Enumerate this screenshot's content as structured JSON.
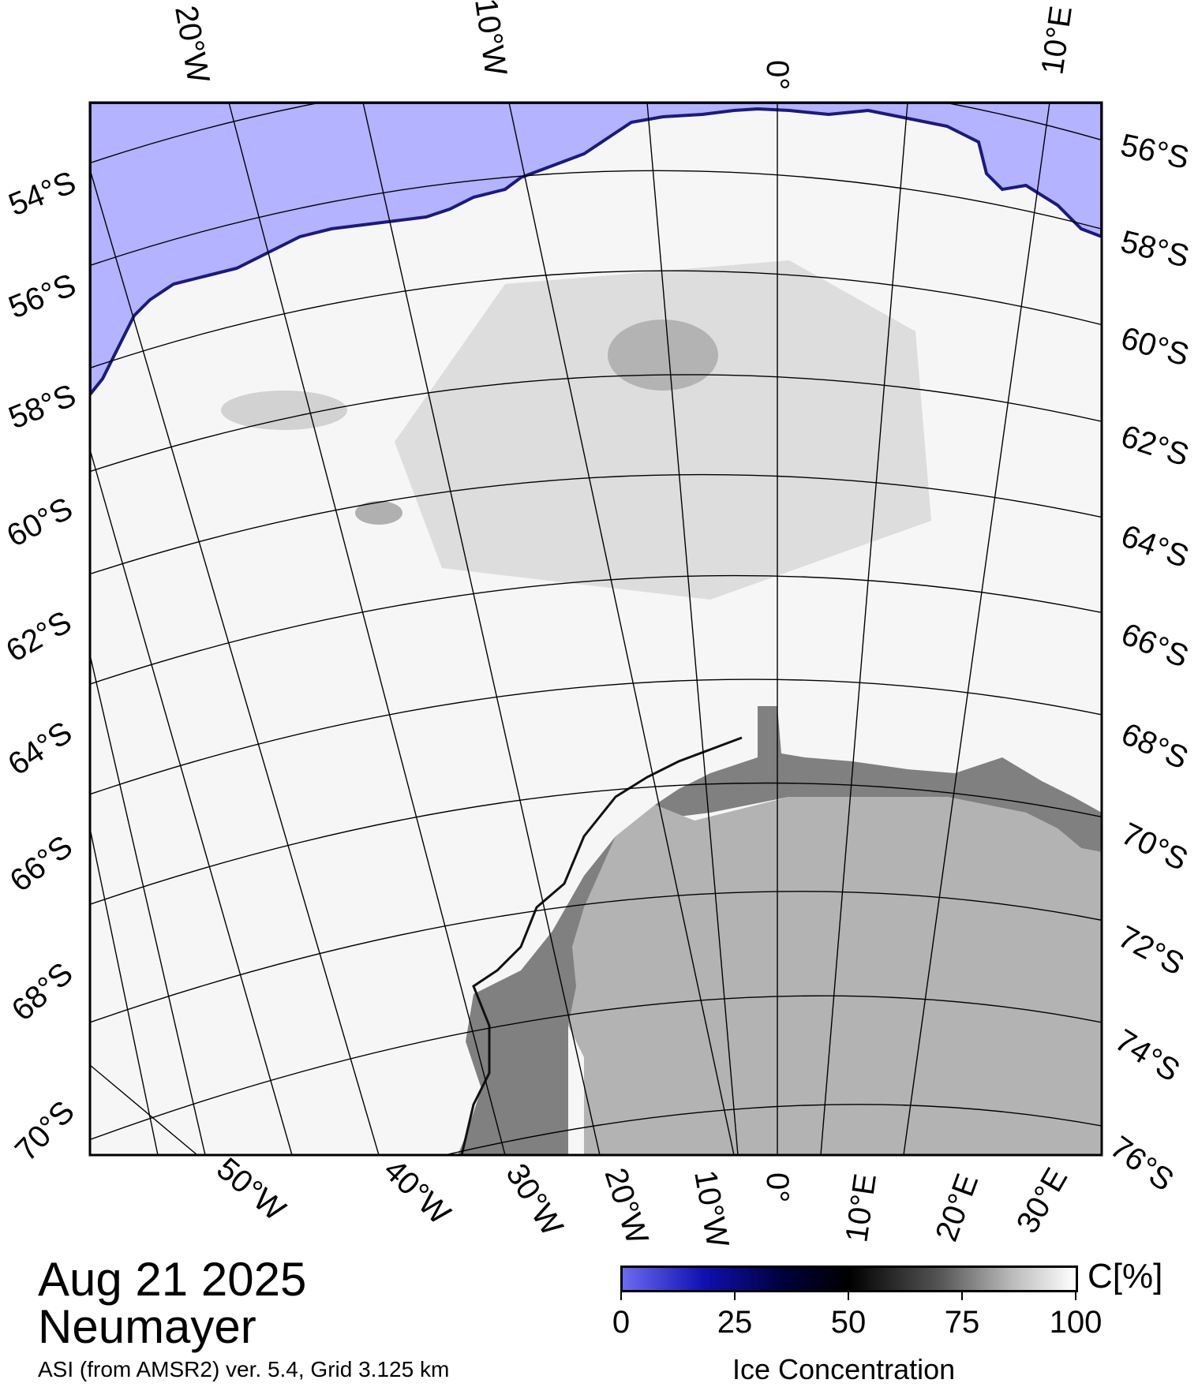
{
  "top_lon_labels": [
    "20°W",
    "10°W",
    "0°",
    "10°E"
  ],
  "bottom_lon_labels": [
    "50°W",
    "40°W",
    "30°W",
    "20°W",
    "10°W",
    "0°",
    "10°E",
    "20°E",
    "30°E"
  ],
  "left_lat_labels": [
    "54°S",
    "56°S",
    "58°S",
    "60°S",
    "62°S",
    "64°S",
    "66°S",
    "68°S",
    "70°S"
  ],
  "right_lat_labels": [
    "56°S",
    "58°S",
    "60°S",
    "62°S",
    "64°S",
    "66°S",
    "68°S",
    "70°S",
    "72°S",
    "74°S",
    "76°S"
  ],
  "info": {
    "date": "Aug 21 2025",
    "station": "Neumayer",
    "product": "ASI (from AMSR2) ver. 5.4,  Grid 3.125 km"
  },
  "colorbar": {
    "unit": "C[%]",
    "title": "Ice Concentration",
    "ticks": [
      "0",
      "25",
      "50",
      "75",
      "100"
    ],
    "colors": {
      "low": "#6b6bf0",
      "mid": "#000000",
      "high": "#ffffff"
    }
  },
  "colors": {
    "open_water": "#b3b3ff",
    "land": "#b3b3b3",
    "ice_shelf": "#808080"
  }
}
